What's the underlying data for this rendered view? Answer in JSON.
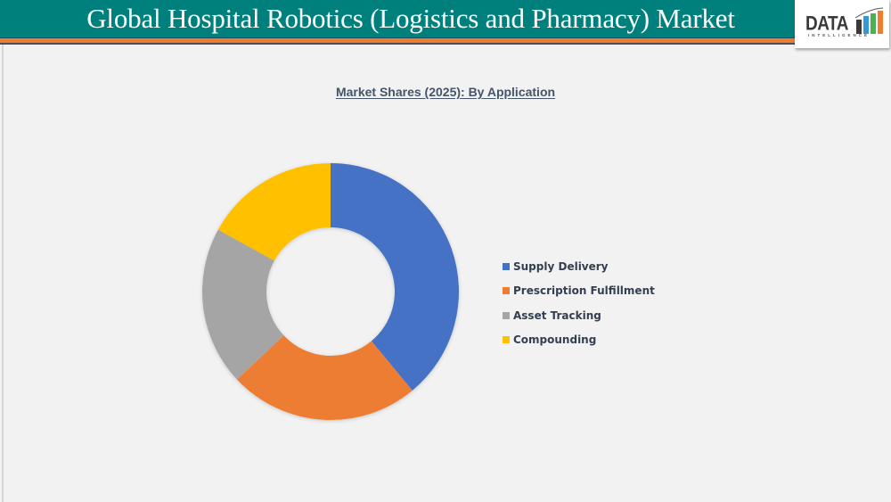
{
  "header": {
    "title": "Global Hospital Robotics (Logistics and Pharmacy) Market",
    "logo_text": "DATA",
    "logo_subtext": "INTELLIGENCE",
    "colors": {
      "band": "#00807c",
      "stripe": "#ed7d31"
    }
  },
  "chart_data": {
    "type": "pie",
    "subtype": "donut",
    "title": "Market Shares (2025): By Application",
    "categories": [
      "Supply Delivery",
      "Prescription Fulfillment",
      "Asset Tracking",
      "Compounding"
    ],
    "values": [
      39,
      24,
      20,
      17
    ],
    "unit": "%",
    "colors": [
      "#4472c4",
      "#ed7d31",
      "#a5a5a5",
      "#ffc000"
    ],
    "start_angle_deg": 0,
    "direction": "clockwise",
    "data_labels": false,
    "legend_position": "right"
  },
  "legend": {
    "items": [
      {
        "label": "Supply Delivery",
        "color": "#4472c4"
      },
      {
        "label": "Prescription Fulfillment",
        "color": "#ed7d31"
      },
      {
        "label": "Asset Tracking",
        "color": "#a5a5a5"
      },
      {
        "label": "Compounding",
        "color": "#ffc000"
      }
    ]
  }
}
